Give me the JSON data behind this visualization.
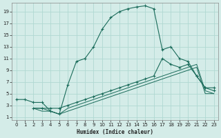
{
  "xlabel": "Humidex (Indice chaleur)",
  "bg_color": "#d4ece8",
  "grid_color": "#b0d8d2",
  "line_color": "#1a6b5a",
  "xlim": [
    -0.5,
    23.5
  ],
  "ylim": [
    0.5,
    20.5
  ],
  "xticks": [
    0,
    1,
    2,
    3,
    4,
    5,
    6,
    7,
    8,
    9,
    10,
    11,
    12,
    13,
    14,
    15,
    16,
    17,
    18,
    19,
    20,
    21,
    22,
    23
  ],
  "yticks": [
    1,
    3,
    5,
    7,
    9,
    11,
    13,
    15,
    17,
    19
  ],
  "line1_x": [
    0,
    1,
    2,
    3,
    4,
    5,
    6,
    7,
    8,
    9,
    10,
    11,
    12,
    13,
    14,
    15,
    16,
    17,
    18,
    19,
    20,
    21,
    22,
    23
  ],
  "line1_y": [
    4,
    4,
    3.5,
    3.5,
    2,
    1.5,
    6.5,
    10.5,
    11,
    13,
    16,
    18,
    19,
    19.5,
    19.8,
    20,
    19.5,
    12.5,
    13,
    11,
    10.5,
    8,
    6,
    5.5
  ],
  "line2_x": [
    2,
    3,
    4,
    5,
    6,
    7,
    8,
    9,
    10,
    11,
    12,
    13,
    14,
    15,
    16,
    17,
    18,
    19,
    20,
    21,
    22,
    23
  ],
  "line2_y": [
    2.5,
    2.5,
    2.5,
    2.5,
    3,
    3.5,
    4,
    4.5,
    5,
    5.5,
    6,
    6.5,
    7,
    7.5,
    8,
    11,
    10,
    9.5,
    10,
    8,
    6,
    6
  ],
  "line3_x": [
    2,
    3,
    4,
    5,
    6,
    7,
    8,
    9,
    10,
    11,
    12,
    13,
    14,
    15,
    16,
    17,
    18,
    19,
    20,
    21,
    22,
    23
  ],
  "line3_y": [
    2.5,
    2.5,
    2,
    1.5,
    2.5,
    3,
    3.5,
    4,
    4.5,
    5,
    5.5,
    6,
    6.5,
    7,
    7.5,
    8,
    8.5,
    9,
    9.5,
    10,
    5.5,
    5
  ],
  "line4_x": [
    2,
    3,
    4,
    5,
    6,
    7,
    8,
    9,
    10,
    11,
    12,
    13,
    14,
    15,
    16,
    17,
    18,
    19,
    20,
    21,
    22,
    23
  ],
  "line4_y": [
    2.5,
    2,
    2,
    1.5,
    2,
    2.5,
    3,
    3.5,
    4,
    4.5,
    5,
    5.5,
    6,
    6.5,
    7,
    7.5,
    8,
    8.5,
    9,
    9.5,
    5,
    5
  ]
}
